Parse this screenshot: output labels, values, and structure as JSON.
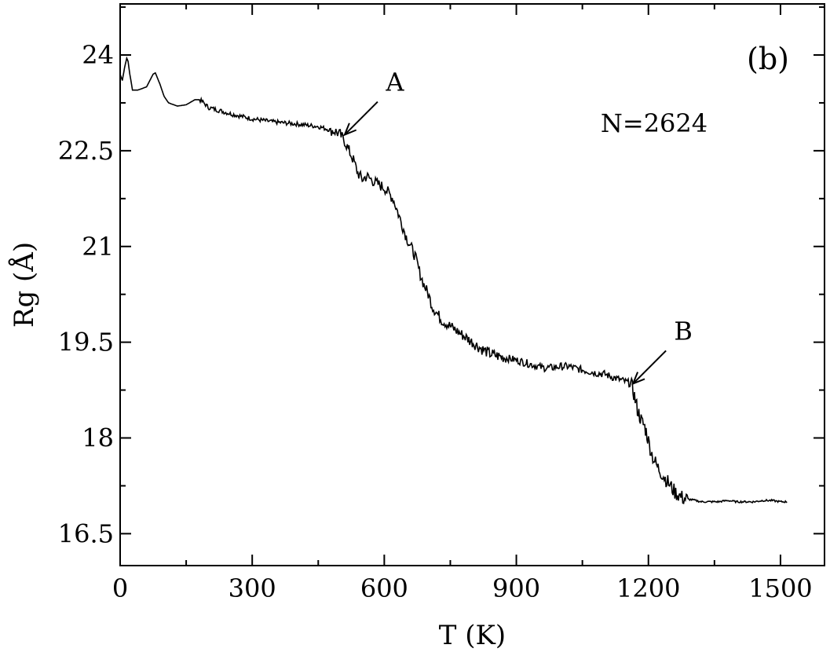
{
  "chart_data": {
    "type": "line",
    "panel_label": "(b)",
    "annotation_text": "N=2624",
    "xlabel": "T (K)",
    "ylabel": "Rg (Å)",
    "xlim": [
      0,
      1600
    ],
    "ylim": [
      16,
      24.8
    ],
    "x_ticks": [
      0,
      300,
      600,
      900,
      1200,
      1500
    ],
    "x_tick_labels": [
      "0",
      "300",
      "600",
      "900",
      "1200",
      "1500"
    ],
    "y_ticks": [
      16.5,
      18,
      19.5,
      21,
      22.5,
      24
    ],
    "y_tick_labels": [
      "16.5",
      "18",
      "19.5",
      "21",
      "22.5",
      "24"
    ],
    "grid": false,
    "legend": "none",
    "line_color": "#000000",
    "series": [
      {
        "x": [
          0,
          5,
          10,
          15,
          18,
          22,
          28,
          40,
          60,
          75,
          80,
          90,
          100,
          110,
          130,
          150,
          170,
          180,
          190,
          200,
          250,
          300,
          350,
          400,
          450,
          490,
          500,
          510,
          520,
          530,
          540,
          550,
          560,
          570,
          580,
          600,
          620,
          630,
          640,
          650,
          660,
          670,
          680,
          690,
          700,
          710,
          720,
          730,
          740,
          750,
          760,
          780,
          800,
          820,
          840,
          860,
          880,
          900,
          920,
          940,
          960,
          980,
          1000,
          1020,
          1040,
          1060,
          1080,
          1100,
          1120,
          1140,
          1160,
          1165,
          1170,
          1175,
          1180,
          1185,
          1190,
          1195,
          1200,
          1210,
          1220,
          1230,
          1240,
          1250,
          1260,
          1270,
          1280,
          1300,
          1320,
          1340,
          1360,
          1380,
          1400,
          1420,
          1440,
          1460,
          1480,
          1500,
          1515
        ],
        "y": [
          23.7,
          23.6,
          23.8,
          23.95,
          23.9,
          23.7,
          23.45,
          23.45,
          23.5,
          23.7,
          23.72,
          23.55,
          23.35,
          23.25,
          23.2,
          23.22,
          23.3,
          23.3,
          23.25,
          23.18,
          23.08,
          23.0,
          22.95,
          22.92,
          22.88,
          22.8,
          22.75,
          22.65,
          22.5,
          22.35,
          22.15,
          22.05,
          22.1,
          22.05,
          22.0,
          21.92,
          21.75,
          21.55,
          21.35,
          21.15,
          21.0,
          20.85,
          20.6,
          20.4,
          20.25,
          20.05,
          19.95,
          19.85,
          19.8,
          19.75,
          19.7,
          19.6,
          19.5,
          19.4,
          19.32,
          19.28,
          19.25,
          19.22,
          19.18,
          19.14,
          19.1,
          19.1,
          19.12,
          19.12,
          19.08,
          19.05,
          19.02,
          19.0,
          18.95,
          18.9,
          18.85,
          18.75,
          18.6,
          18.45,
          18.35,
          18.25,
          18.2,
          18.1,
          17.95,
          17.7,
          17.55,
          17.45,
          17.35,
          17.25,
          17.15,
          17.1,
          17.05,
          17.03,
          17.0,
          17.0,
          17.0,
          17.02,
          17.0,
          17.0,
          17.0,
          17.02,
          17.02,
          17.0,
          17.0
        ]
      }
    ],
    "annotations": [
      {
        "label": "A",
        "x": 510,
        "y": 22.75
      },
      {
        "label": "B",
        "x": 1165,
        "y": 18.85
      }
    ]
  }
}
